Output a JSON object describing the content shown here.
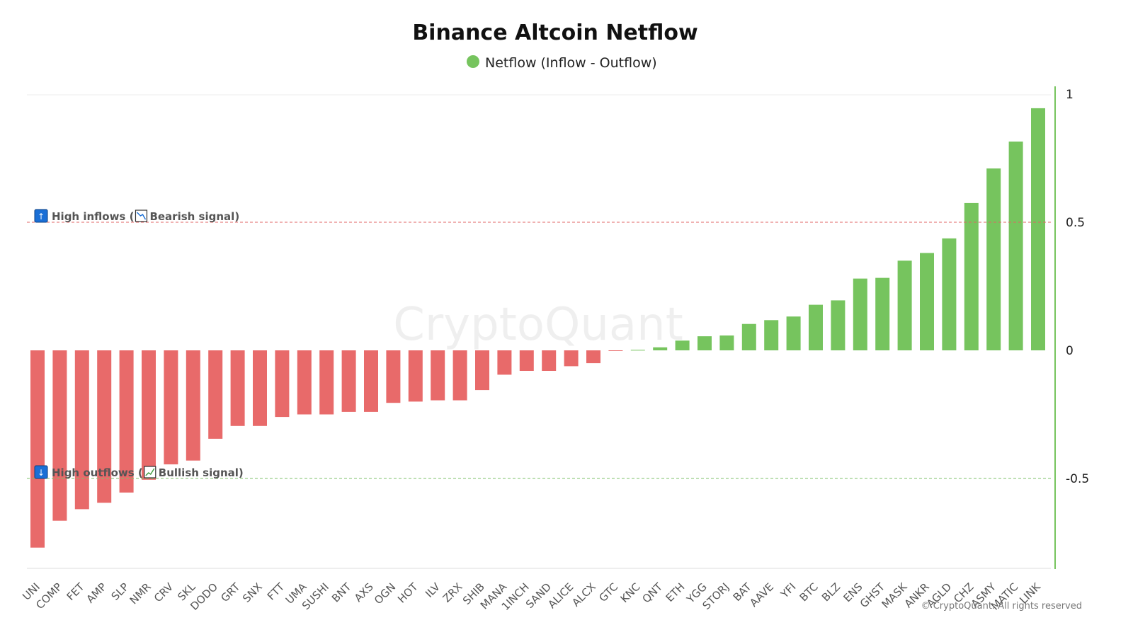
{
  "chart_data": {
    "type": "bar",
    "title": "Binance Altcoin Netflow",
    "legend": {
      "label": "Netflow (Inflow - Outflow)",
      "placement": "top-center"
    },
    "categories": [
      "UNI",
      "COMP",
      "FET",
      "AMP",
      "SLP",
      "NMR",
      "CRV",
      "SKL",
      "DODO",
      "GRT",
      "SNX",
      "FTT",
      "UMA",
      "SUSHI",
      "BNT",
      "AXS",
      "OGN",
      "HOT",
      "ILV",
      "ZRX",
      "SHIB",
      "MANA",
      "1INCH",
      "SAND",
      "ALICE",
      "ALCX",
      "GTC",
      "KNC",
      "QNT",
      "ETH",
      "YGG",
      "STORJ",
      "BAT",
      "AAVE",
      "YFI",
      "BTC",
      "BLZ",
      "ENS",
      "GHST",
      "MASK",
      "ANKR",
      "AGLD",
      "CHZ",
      "ASMY",
      "MATIC",
      "LINK"
    ],
    "series": [
      {
        "values": [
          -0.77,
          -0.665,
          -0.62,
          -0.595,
          -0.555,
          -0.505,
          -0.445,
          -0.43,
          -0.345,
          -0.295,
          -0.295,
          -0.26,
          -0.25,
          -0.25,
          -0.24,
          -0.24,
          -0.205,
          -0.2,
          -0.195,
          -0.195,
          -0.155,
          -0.095,
          -0.08,
          -0.08,
          -0.062,
          -0.05,
          -0.002,
          0.002,
          0.012,
          0.038,
          0.055,
          0.058,
          0.103,
          0.118,
          0.132,
          0.178,
          0.195,
          0.28,
          0.283,
          0.35,
          0.38,
          0.437,
          0.575,
          0.71,
          0.815,
          0.945
        ]
      }
    ],
    "colors": {
      "positive": "#76c45e",
      "negative": "#e86a6a"
    },
    "ylim": [
      -0.86,
      1.01
    ],
    "yticks": [
      1,
      0.5,
      0,
      -0.5
    ],
    "ytick_labels": [
      "1",
      "0.5",
      "0",
      "-0.5"
    ],
    "y_axis_side": "right",
    "grid": false,
    "reference_lines": [
      {
        "value": 0.5,
        "color": "#e06464",
        "style": "dashed",
        "label_icon": "↑",
        "label_main": "High inflows",
        "label_open": " (",
        "signal_icon": "bearish-chart-icon",
        "label_signal": "Bearish signal",
        "label_close": ")"
      },
      {
        "value": -0.5,
        "color": "#7cc06a",
        "style": "dashed",
        "label_icon": "↓",
        "label_main": "High outflows",
        "label_open": " (",
        "signal_icon": "bullish-chart-icon",
        "label_signal": "Bullish signal",
        "label_close": ")"
      }
    ],
    "watermark": "CryptoQuant",
    "copyright": "© CryptoQuant. All rights reserved"
  }
}
